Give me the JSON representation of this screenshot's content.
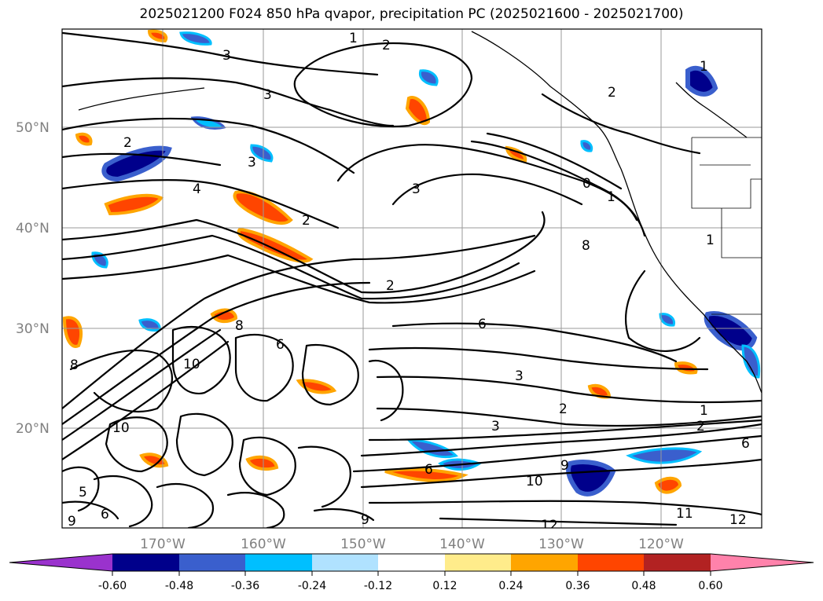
{
  "title": "2025021200 F024 850 hPa qvapor, precipitation PC (2025021600 - 2025021700)",
  "map": {
    "lat_labels": [
      "50°N",
      "40°N",
      "30°N",
      "20°N"
    ],
    "lon_labels": [
      "170°W",
      "160°W",
      "150°W",
      "140°W",
      "130°W",
      "120°W"
    ],
    "gridlines": true
  },
  "contour_labels": [
    {
      "text": "1"
    },
    {
      "text": "2"
    },
    {
      "text": "3"
    },
    {
      "text": "3"
    },
    {
      "text": "2"
    },
    {
      "text": "3"
    },
    {
      "text": "4"
    },
    {
      "text": "2"
    },
    {
      "text": "2"
    },
    {
      "text": "3"
    },
    {
      "text": "0"
    },
    {
      "text": "1"
    },
    {
      "text": "2"
    },
    {
      "text": "1"
    },
    {
      "text": "1"
    },
    {
      "text": "8"
    },
    {
      "text": "6"
    },
    {
      "text": "3"
    },
    {
      "text": "2"
    },
    {
      "text": "1"
    },
    {
      "text": "2"
    },
    {
      "text": "3"
    },
    {
      "text": "6"
    },
    {
      "text": "10"
    },
    {
      "text": "9"
    },
    {
      "text": "11"
    },
    {
      "text": "12"
    },
    {
      "text": "12"
    },
    {
      "text": "9"
    },
    {
      "text": "10"
    },
    {
      "text": "8"
    },
    {
      "text": "10"
    },
    {
      "text": "6"
    },
    {
      "text": "5"
    },
    {
      "text": "9"
    },
    {
      "text": "6"
    },
    {
      "text": "8"
    },
    {
      "text": "6"
    }
  ],
  "colorbar": {
    "colors": [
      "#9a32cd",
      "#00008b",
      "#3a5fcd",
      "#00bfff",
      "#b0e2ff",
      "#ffffff",
      "#ffec8b",
      "#ffa500",
      "#ff4500",
      "#b22222",
      "#ff82ab"
    ],
    "ticks": [
      "-0.60",
      "-0.48",
      "-0.36",
      "-0.24",
      "-0.12",
      "0.12",
      "0.24",
      "0.36",
      "0.48",
      "0.60"
    ]
  }
}
